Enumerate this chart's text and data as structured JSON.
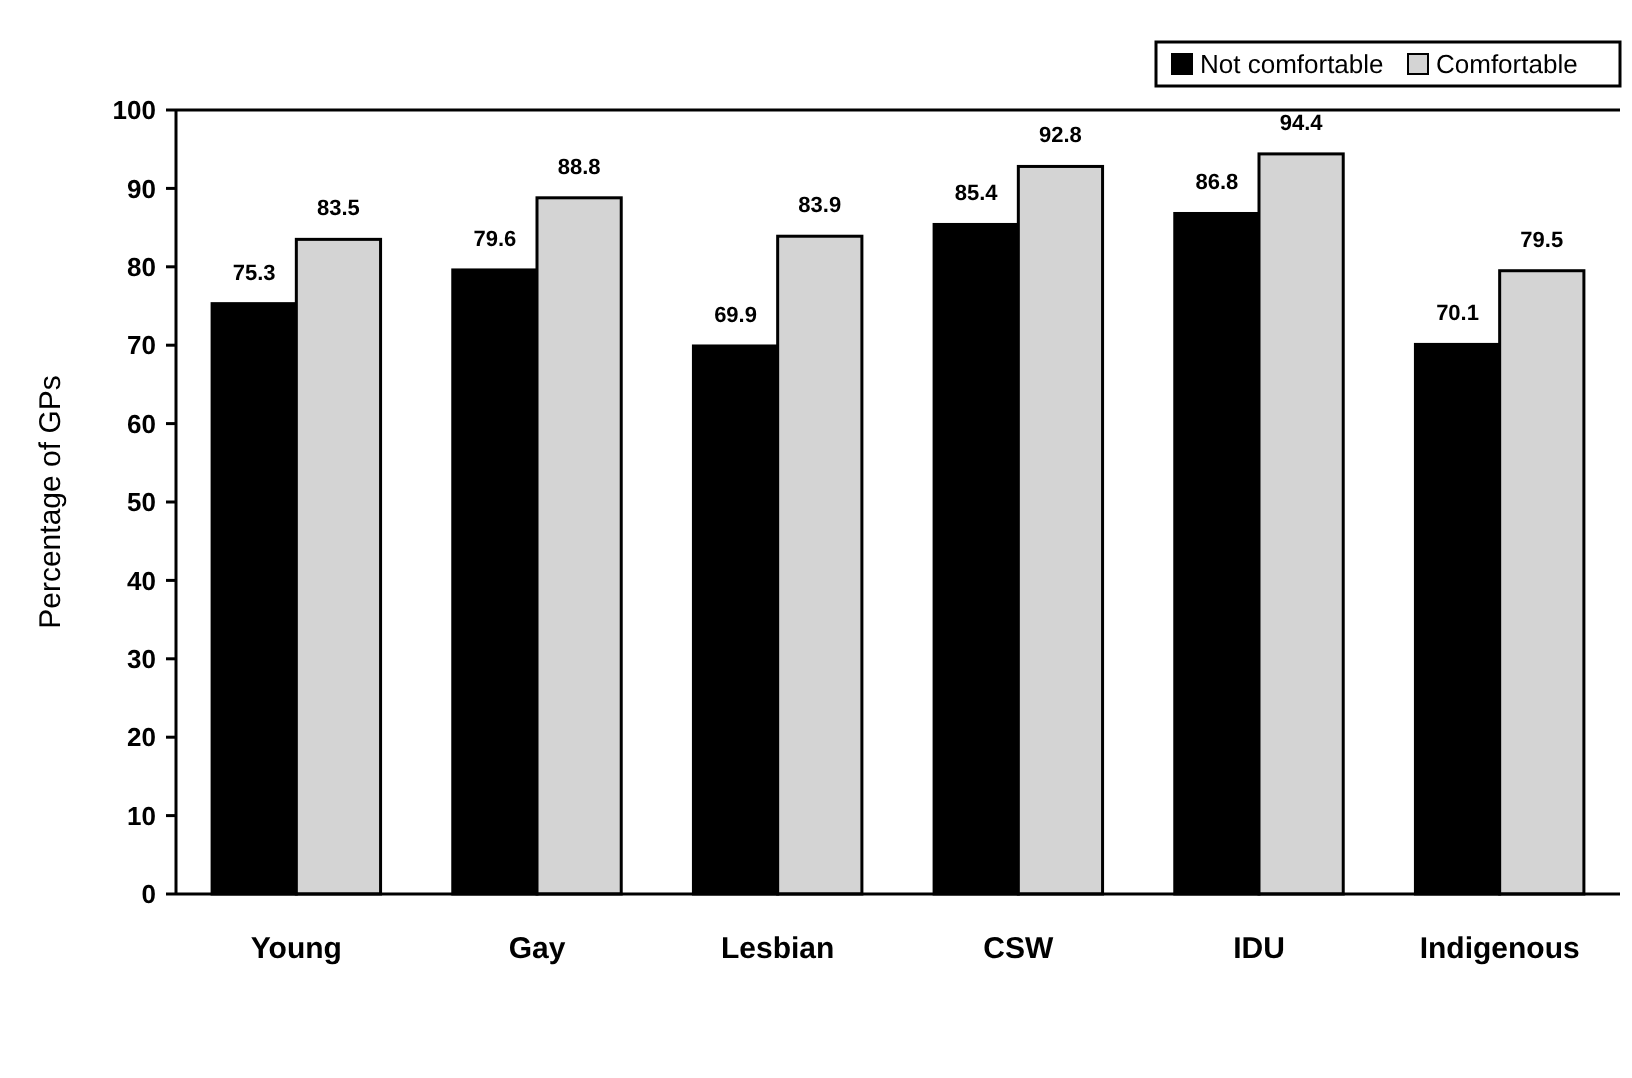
{
  "chart_data": {
    "type": "bar",
    "ylabel": "Percentage of GPs",
    "categories": [
      "Young",
      "Gay",
      "Lesbian",
      "CSW",
      "IDU",
      "Indigenous"
    ],
    "series": [
      {
        "name": "Not comfortable",
        "color": "#000000",
        "values": [
          75.3,
          79.6,
          69.9,
          85.4,
          86.8,
          70.1
        ]
      },
      {
        "name": "Comfortable",
        "color": "#d4d4d4",
        "values": [
          83.5,
          88.8,
          83.9,
          92.8,
          94.4,
          79.5
        ]
      }
    ],
    "ylim": [
      0,
      100
    ],
    "yticks": [
      0,
      10,
      20,
      30,
      40,
      50,
      60,
      70,
      80,
      90,
      100
    ],
    "data_labels": true,
    "legend": "top right",
    "grid": false
  }
}
